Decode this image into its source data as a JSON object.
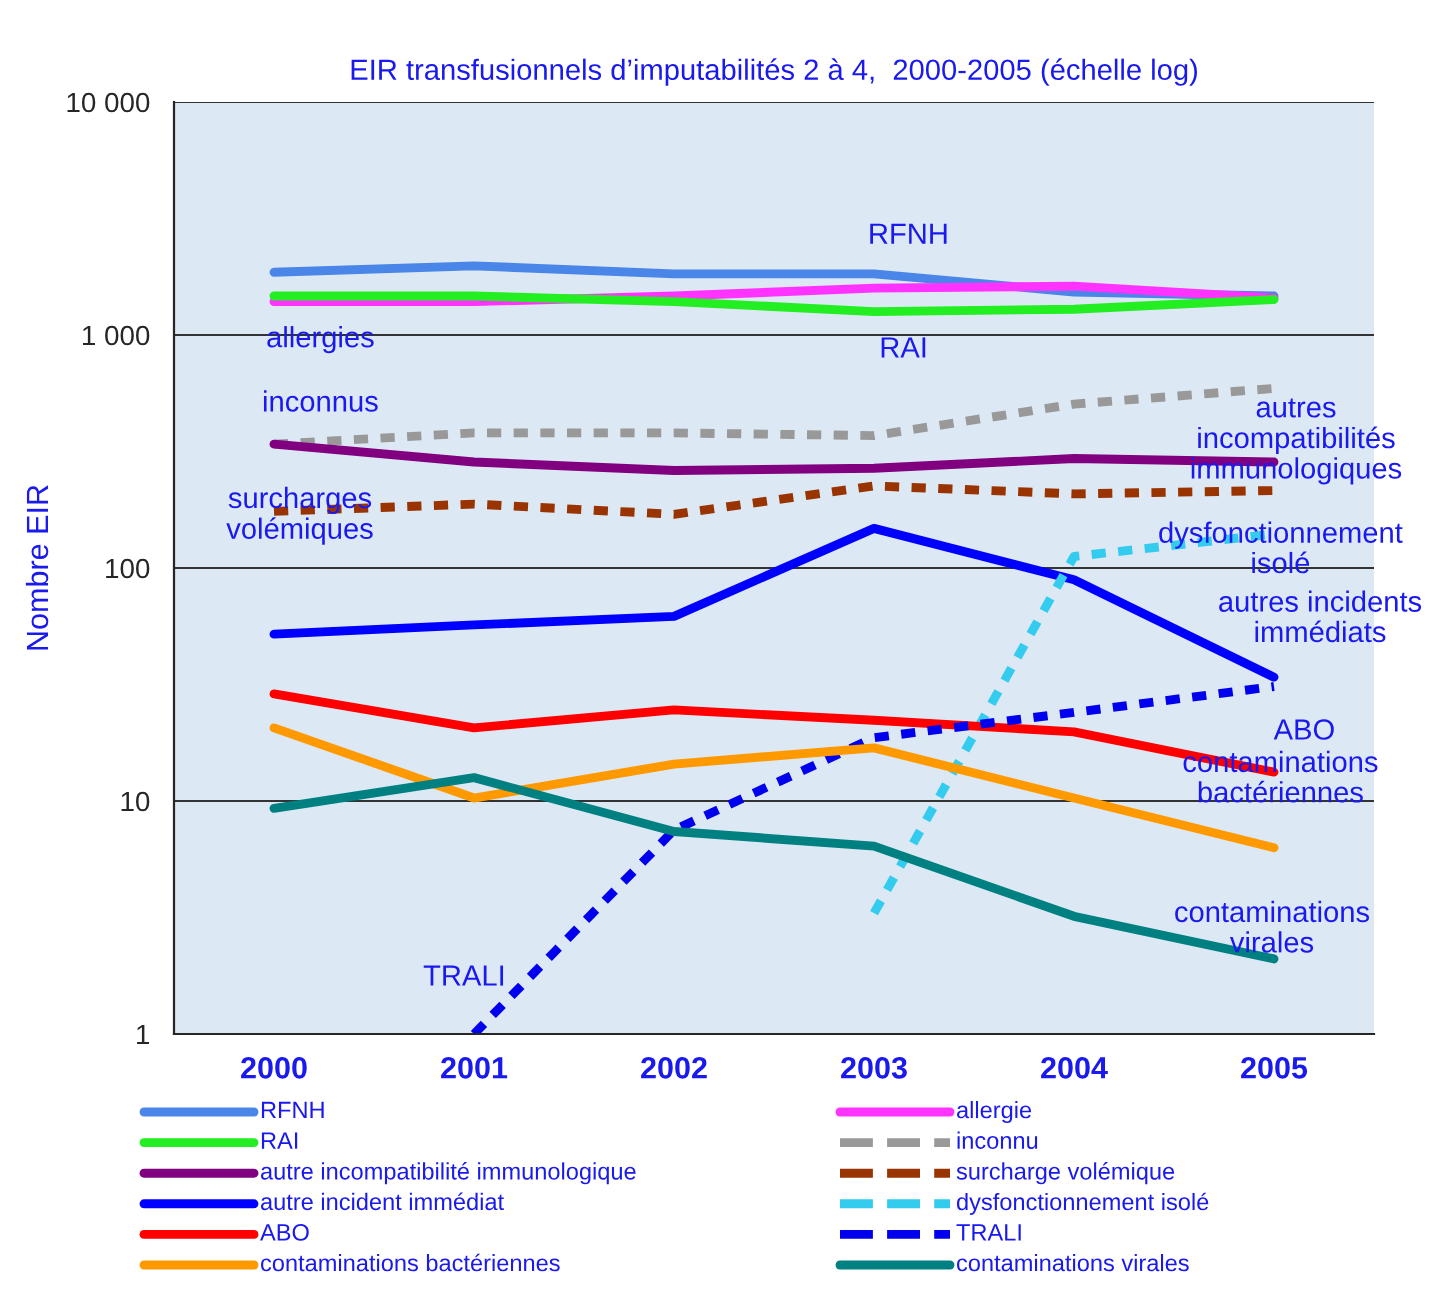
{
  "chart_data": {
    "type": "line",
    "title": "EIR transfusionnels d’imputabilités 2 à 4,  2000-2005 (échelle log)",
    "ylabel": "Nombre EIR",
    "categories": [
      "2000",
      "2001",
      "2002",
      "2003",
      "2004",
      "2005"
    ],
    "log": "y",
    "ylim": [
      1,
      10000
    ],
    "yticks": [
      {
        "value": 1,
        "label": "1"
      },
      {
        "value": 10,
        "label": "10"
      },
      {
        "value": 100,
        "label": "100"
      },
      {
        "value": 1000,
        "label": "1 000"
      },
      {
        "value": 10000,
        "label": "10 000"
      }
    ],
    "grid": "y",
    "legend": "bottom",
    "marker": "none",
    "series": [
      {
        "name": "RFNH",
        "color": "#4a86e8",
        "line_style": "solid",
        "values": [
          1860,
          1980,
          1830,
          1830,
          1530,
          1470
        ]
      },
      {
        "name": "allergie",
        "color": "#ff33ff",
        "line_style": "solid",
        "values": [
          1390,
          1390,
          1470,
          1590,
          1620,
          1440
        ]
      },
      {
        "name": "RAI",
        "color": "#22ee22",
        "line_style": "solid",
        "values": [
          1470,
          1470,
          1390,
          1260,
          1290,
          1420
        ]
      },
      {
        "name": "inconnu",
        "color": "#999999",
        "line_style": "dashed",
        "values": [
          340,
          380,
          380,
          370,
          505,
          590
        ]
      },
      {
        "name": "autre incompatibilité immunologique",
        "color": "#800080",
        "line_style": "solid",
        "values": [
          340,
          285,
          262,
          268,
          295,
          285
        ]
      },
      {
        "name": "surcharge volémique",
        "color": "#993300",
        "line_style": "dashed",
        "values": [
          175,
          188,
          170,
          225,
          208,
          215
        ]
      },
      {
        "name": "autre incident immédiat",
        "color": "#0000ff",
        "line_style": "solid",
        "values": [
          52,
          57,
          62,
          148,
          89,
          34
        ]
      },
      {
        "name": "dysfonctionnement isolé",
        "color": "#33ccee",
        "line_style": "dashed",
        "values": [
          null,
          null,
          null,
          3.3,
          112,
          140
        ]
      },
      {
        "name": "ABO",
        "color": "#ff0000",
        "line_style": "solid",
        "values": [
          28.8,
          20.6,
          24.6,
          22.2,
          19.8,
          13.3
        ]
      },
      {
        "name": "TRALI",
        "color": "#0000ee",
        "line_style": "dashed",
        "values": [
          null,
          1,
          7.5,
          18.7,
          24,
          31
        ]
      },
      {
        "name": "contaminations bactériennes",
        "color": "#ff9900",
        "line_style": "solid",
        "values": [
          20.6,
          10.3,
          14.4,
          16.9,
          10.3,
          6.3
        ]
      },
      {
        "name": "contaminations virales",
        "color": "#008080",
        "line_style": "solid",
        "values": [
          9.3,
          12.6,
          7.4,
          6.4,
          3.2,
          2.1
        ]
      }
    ],
    "annotations": [
      "RFNH",
      "allergies",
      "RAI",
      "inconnus",
      "autres\nincompatibilités\nimmunologiques",
      "surcharges\nvolémiques",
      "dysfonctionnement\nisolé",
      "autres incidents\nimmédiats",
      "ABO",
      "contaminations\nbactériennes",
      "contaminations\nvirales",
      "TRALI"
    ]
  }
}
